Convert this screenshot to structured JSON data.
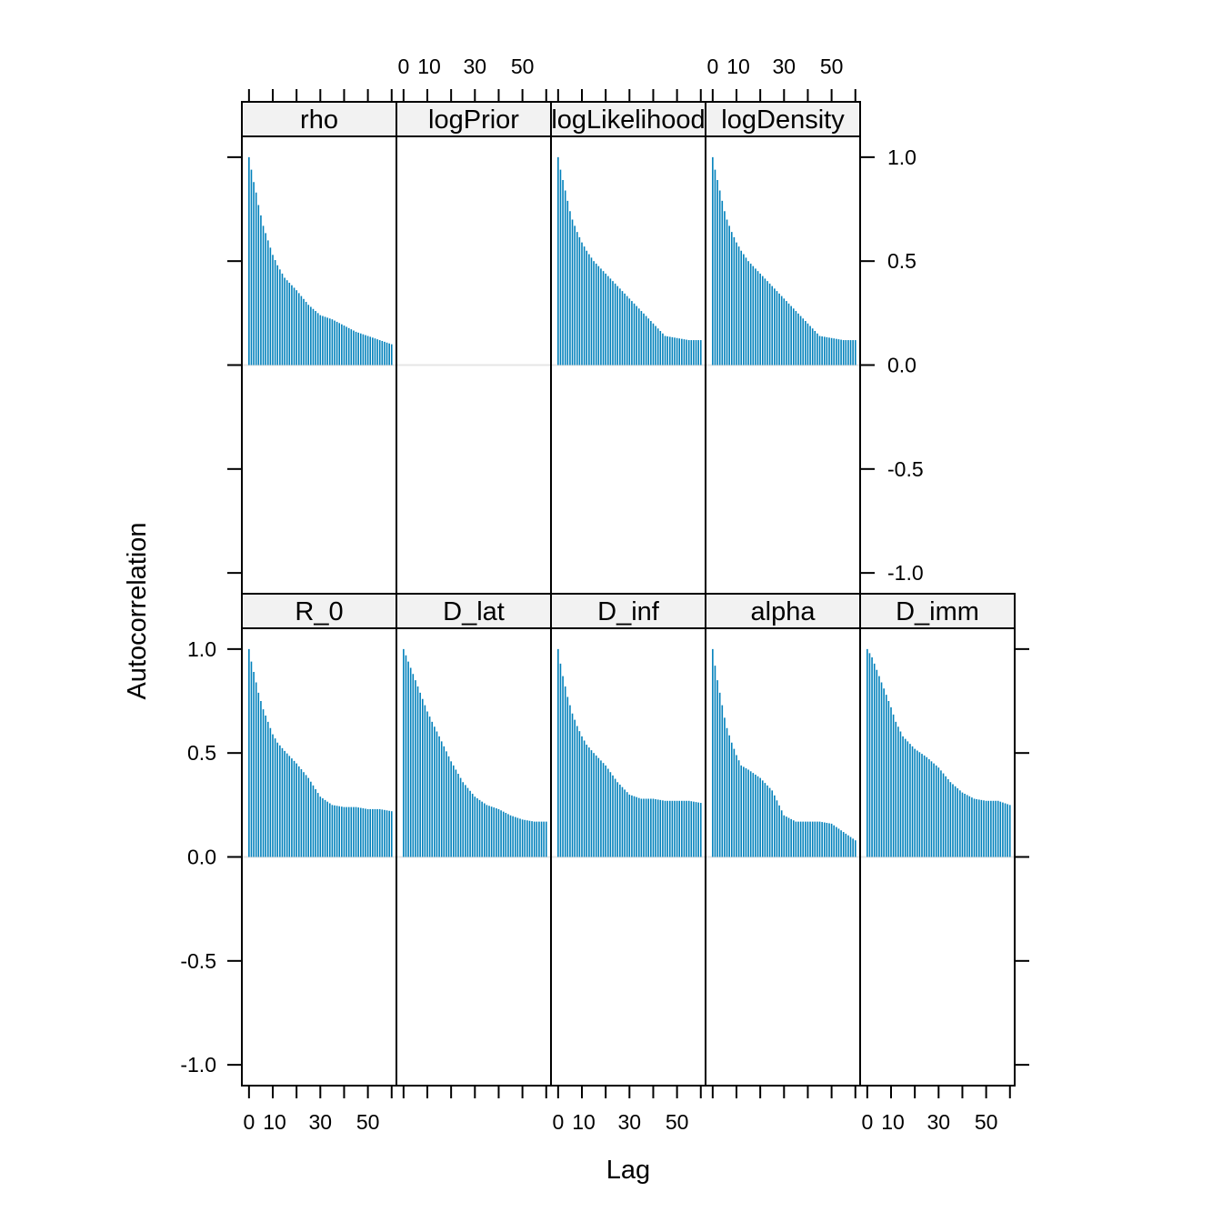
{
  "colors": {
    "bar": "#0080bb",
    "strip_bg": "#f2f2f2",
    "zero_line": "#e6e6e6",
    "frame": "#000000"
  },
  "chart_data": {
    "type": "bar",
    "xlabel": "Lag",
    "ylabel": "Autocorrelation",
    "xlim": [
      -3,
      62
    ],
    "ylim": [
      -1.1,
      1.1
    ],
    "x_ticks": [
      0,
      10,
      30,
      50
    ],
    "x_tick_marks": [
      0,
      10,
      20,
      30,
      40,
      50,
      60
    ],
    "y_ticks": [
      1.0,
      0.5,
      0.0,
      -0.5,
      -1.0
    ],
    "y_tick_labels": [
      "1.0",
      "0.5",
      "0.0",
      "-0.5",
      "-1.0"
    ],
    "lags": [
      0,
      60
    ],
    "panels": [
      {
        "name": "rho",
        "row": 1,
        "col": 0,
        "anchors": [
          [
            0,
            1.0
          ],
          [
            1,
            0.94
          ],
          [
            2,
            0.88
          ],
          [
            3,
            0.83
          ],
          [
            4,
            0.77
          ],
          [
            5,
            0.72
          ],
          [
            6,
            0.67
          ],
          [
            8,
            0.6
          ],
          [
            10,
            0.53
          ],
          [
            12,
            0.48
          ],
          [
            15,
            0.42
          ],
          [
            20,
            0.36
          ],
          [
            25,
            0.29
          ],
          [
            30,
            0.24
          ],
          [
            35,
            0.22
          ],
          [
            40,
            0.19
          ],
          [
            45,
            0.16
          ],
          [
            50,
            0.14
          ],
          [
            55,
            0.12
          ],
          [
            60,
            0.1
          ]
        ]
      },
      {
        "name": "logPrior",
        "row": 1,
        "col": 1,
        "empty": true
      },
      {
        "name": "logLikelihood",
        "row": 1,
        "col": 2,
        "anchors": [
          [
            0,
            1.0
          ],
          [
            1,
            0.94
          ],
          [
            2,
            0.89
          ],
          [
            3,
            0.84
          ],
          [
            4,
            0.79
          ],
          [
            5,
            0.74
          ],
          [
            6,
            0.7
          ],
          [
            8,
            0.64
          ],
          [
            10,
            0.59
          ],
          [
            12,
            0.55
          ],
          [
            15,
            0.5
          ],
          [
            20,
            0.44
          ],
          [
            25,
            0.38
          ],
          [
            30,
            0.32
          ],
          [
            35,
            0.26
          ],
          [
            40,
            0.2
          ],
          [
            45,
            0.14
          ],
          [
            50,
            0.13
          ],
          [
            55,
            0.12
          ],
          [
            60,
            0.12
          ]
        ]
      },
      {
        "name": "logDensity",
        "row": 1,
        "col": 3,
        "anchors": [
          [
            0,
            1.0
          ],
          [
            1,
            0.94
          ],
          [
            2,
            0.89
          ],
          [
            3,
            0.84
          ],
          [
            4,
            0.79
          ],
          [
            5,
            0.74
          ],
          [
            6,
            0.7
          ],
          [
            8,
            0.64
          ],
          [
            10,
            0.59
          ],
          [
            12,
            0.55
          ],
          [
            15,
            0.5
          ],
          [
            20,
            0.44
          ],
          [
            25,
            0.38
          ],
          [
            30,
            0.32
          ],
          [
            35,
            0.26
          ],
          [
            40,
            0.2
          ],
          [
            45,
            0.14
          ],
          [
            50,
            0.13
          ],
          [
            55,
            0.12
          ],
          [
            60,
            0.12
          ]
        ]
      },
      {
        "name": "R_0",
        "row": 0,
        "col": 0,
        "anchors": [
          [
            0,
            1.0
          ],
          [
            1,
            0.94
          ],
          [
            2,
            0.89
          ],
          [
            3,
            0.84
          ],
          [
            4,
            0.79
          ],
          [
            5,
            0.75
          ],
          [
            6,
            0.71
          ],
          [
            8,
            0.65
          ],
          [
            10,
            0.59
          ],
          [
            12,
            0.55
          ],
          [
            15,
            0.51
          ],
          [
            20,
            0.45
          ],
          [
            25,
            0.38
          ],
          [
            30,
            0.29
          ],
          [
            35,
            0.25
          ],
          [
            40,
            0.24
          ],
          [
            45,
            0.24
          ],
          [
            50,
            0.23
          ],
          [
            55,
            0.23
          ],
          [
            60,
            0.22
          ]
        ]
      },
      {
        "name": "D_lat",
        "row": 0,
        "col": 1,
        "anchors": [
          [
            0,
            1.0
          ],
          [
            1,
            0.97
          ],
          [
            2,
            0.94
          ],
          [
            3,
            0.91
          ],
          [
            4,
            0.88
          ],
          [
            5,
            0.85
          ],
          [
            6,
            0.82
          ],
          [
            8,
            0.76
          ],
          [
            10,
            0.7
          ],
          [
            12,
            0.65
          ],
          [
            15,
            0.58
          ],
          [
            20,
            0.46
          ],
          [
            25,
            0.36
          ],
          [
            30,
            0.29
          ],
          [
            35,
            0.25
          ],
          [
            40,
            0.23
          ],
          [
            45,
            0.2
          ],
          [
            50,
            0.18
          ],
          [
            55,
            0.17
          ],
          [
            60,
            0.17
          ]
        ]
      },
      {
        "name": "D_inf",
        "row": 0,
        "col": 2,
        "anchors": [
          [
            0,
            1.0
          ],
          [
            1,
            0.93
          ],
          [
            2,
            0.87
          ],
          [
            3,
            0.82
          ],
          [
            4,
            0.77
          ],
          [
            5,
            0.73
          ],
          [
            6,
            0.69
          ],
          [
            8,
            0.63
          ],
          [
            10,
            0.58
          ],
          [
            12,
            0.54
          ],
          [
            15,
            0.5
          ],
          [
            20,
            0.44
          ],
          [
            25,
            0.36
          ],
          [
            30,
            0.3
          ],
          [
            35,
            0.28
          ],
          [
            40,
            0.28
          ],
          [
            45,
            0.27
          ],
          [
            50,
            0.27
          ],
          [
            55,
            0.27
          ],
          [
            60,
            0.26
          ]
        ]
      },
      {
        "name": "alpha",
        "row": 0,
        "col": 3,
        "anchors": [
          [
            0,
            1.0
          ],
          [
            1,
            0.92
          ],
          [
            2,
            0.85
          ],
          [
            3,
            0.79
          ],
          [
            4,
            0.73
          ],
          [
            5,
            0.67
          ],
          [
            6,
            0.62
          ],
          [
            8,
            0.55
          ],
          [
            10,
            0.49
          ],
          [
            12,
            0.44
          ],
          [
            15,
            0.42
          ],
          [
            20,
            0.38
          ],
          [
            25,
            0.32
          ],
          [
            30,
            0.2
          ],
          [
            35,
            0.17
          ],
          [
            40,
            0.17
          ],
          [
            45,
            0.17
          ],
          [
            50,
            0.16
          ],
          [
            55,
            0.12
          ],
          [
            60,
            0.08
          ]
        ]
      },
      {
        "name": "D_imm",
        "row": 0,
        "col": 4,
        "anchors": [
          [
            0,
            1.0
          ],
          [
            1,
            0.98
          ],
          [
            2,
            0.96
          ],
          [
            3,
            0.93
          ],
          [
            4,
            0.9
          ],
          [
            5,
            0.87
          ],
          [
            6,
            0.84
          ],
          [
            8,
            0.78
          ],
          [
            10,
            0.72
          ],
          [
            12,
            0.65
          ],
          [
            15,
            0.58
          ],
          [
            20,
            0.52
          ],
          [
            25,
            0.48
          ],
          [
            30,
            0.43
          ],
          [
            35,
            0.36
          ],
          [
            40,
            0.31
          ],
          [
            45,
            0.28
          ],
          [
            50,
            0.27
          ],
          [
            55,
            0.27
          ],
          [
            60,
            0.25
          ]
        ]
      }
    ]
  }
}
